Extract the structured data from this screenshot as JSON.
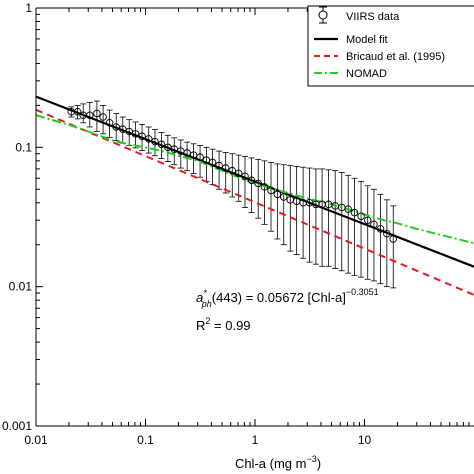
{
  "chart_data": {
    "type": "scatter",
    "x_scale": "log",
    "y_scale": "log",
    "xlim": [
      0.01,
      100
    ],
    "ylim": [
      0.001,
      1
    ],
    "xlabel": "Chl-a  (mg m",
    "xlabel_sup": "−3",
    "xlabel_end": ")",
    "xticks": [
      0.01,
      0.1,
      1,
      10
    ],
    "xtick_labels": [
      "0.01",
      "0.1",
      "1",
      "10"
    ],
    "yticks": [
      0.001,
      0.01,
      0.1,
      1
    ],
    "ytick_labels": [
      "0.001",
      "0.01",
      "0.1",
      "1"
    ],
    "legend_position": "top-right",
    "legend": [
      {
        "label": "VIIRS data",
        "style": "marker-errorbar",
        "color": "#000000"
      },
      {
        "label": "Model fit",
        "style": "solid",
        "color": "#000000"
      },
      {
        "label": "Bricaud et al. (1995)",
        "style": "dashed",
        "color": "#e31a1c"
      },
      {
        "label": "NOMAD",
        "style": "dashdot",
        "color": "#22cc22"
      }
    ],
    "annotations": {
      "equation_a": "a",
      "equation_sup": "*",
      "equation_sub": "ph",
      "equation_main": "(443) = 0.05672 [Chl-a]",
      "equation_exp": "−0.3051",
      "r2_prefix": "R",
      "r2_sup": "2",
      "r2_rest": " = 0.99"
    },
    "series": [
      {
        "name": "VIIRS data",
        "kind": "points",
        "x": [
          0.021,
          0.024,
          0.027,
          0.031,
          0.036,
          0.041,
          0.047,
          0.054,
          0.062,
          0.071,
          0.081,
          0.093,
          0.107,
          0.122,
          0.14,
          0.16,
          0.183,
          0.21,
          0.24,
          0.275,
          0.315,
          0.36,
          0.41,
          0.47,
          0.54,
          0.62,
          0.71,
          0.81,
          0.93,
          1.07,
          1.22,
          1.4,
          1.6,
          1.83,
          2.1,
          2.4,
          2.75,
          3.15,
          3.6,
          4.1,
          4.7,
          5.4,
          6.2,
          7.1,
          8.1,
          9.3,
          10.7,
          12.2,
          14.0,
          16.0,
          18.3
        ],
        "y": [
          0.18,
          0.18,
          0.17,
          0.17,
          0.175,
          0.165,
          0.15,
          0.14,
          0.135,
          0.13,
          0.125,
          0.12,
          0.115,
          0.11,
          0.105,
          0.1,
          0.097,
          0.094,
          0.091,
          0.088,
          0.085,
          0.081,
          0.078,
          0.074,
          0.071,
          0.068,
          0.065,
          0.062,
          0.058,
          0.055,
          0.052,
          0.049,
          0.046,
          0.044,
          0.042,
          0.041,
          0.04,
          0.04,
          0.039,
          0.039,
          0.039,
          0.038,
          0.037,
          0.036,
          0.034,
          0.032,
          0.03,
          0.028,
          0.026,
          0.024,
          0.022
        ],
        "y_low": [
          0.165,
          0.16,
          0.15,
          0.14,
          0.13,
          0.125,
          0.118,
          0.112,
          0.107,
          0.103,
          0.099,
          0.095,
          0.091,
          0.087,
          0.083,
          0.079,
          0.075,
          0.071,
          0.068,
          0.065,
          0.061,
          0.057,
          0.054,
          0.05,
          0.047,
          0.044,
          0.041,
          0.037,
          0.034,
          0.031,
          0.028,
          0.025,
          0.022,
          0.02,
          0.018,
          0.017,
          0.016,
          0.015,
          0.0145,
          0.014,
          0.014,
          0.0135,
          0.013,
          0.0125,
          0.012,
          0.0117,
          0.0113,
          0.011,
          0.0105,
          0.01,
          0.0098
        ],
        "y_high": [
          0.195,
          0.2,
          0.205,
          0.21,
          0.215,
          0.2,
          0.185,
          0.175,
          0.165,
          0.158,
          0.152,
          0.146,
          0.14,
          0.134,
          0.128,
          0.122,
          0.117,
          0.113,
          0.109,
          0.106,
          0.103,
          0.1,
          0.097,
          0.094,
          0.092,
          0.09,
          0.088,
          0.086,
          0.084,
          0.082,
          0.08,
          0.078,
          0.076,
          0.075,
          0.074,
          0.073,
          0.072,
          0.071,
          0.07,
          0.07,
          0.069,
          0.068,
          0.066,
          0.063,
          0.06,
          0.057,
          0.053,
          0.05,
          0.046,
          0.042,
          0.038
        ],
        "color": "#000000"
      },
      {
        "name": "Model fit",
        "kind": "power_law",
        "coef": 0.05672,
        "exponent": -0.3051,
        "color": "#000000",
        "dash": "solid"
      },
      {
        "name": "Bricaud et al. (1995)",
        "kind": "power_law",
        "coef": 0.0403,
        "exponent": -0.332,
        "color": "#e31a1c",
        "dash": "dashed"
      },
      {
        "name": "NOMAD",
        "kind": "line",
        "x": [
          0.01,
          0.02,
          0.03,
          0.05,
          0.07,
          0.1,
          0.15,
          0.2,
          0.3,
          0.5,
          0.7,
          1,
          1.5,
          2,
          3,
          5,
          7,
          10,
          15,
          20,
          30,
          50,
          70,
          100
        ],
        "y": [
          0.17,
          0.145,
          0.13,
          0.112,
          0.105,
          0.1,
          0.093,
          0.087,
          0.08,
          0.068,
          0.061,
          0.055,
          0.05,
          0.047,
          0.043,
          0.039,
          0.036,
          0.033,
          0.03,
          0.0285,
          0.026,
          0.0235,
          0.022,
          0.0205
        ],
        "color": "#22cc22",
        "dash": "dashdot"
      }
    ]
  }
}
